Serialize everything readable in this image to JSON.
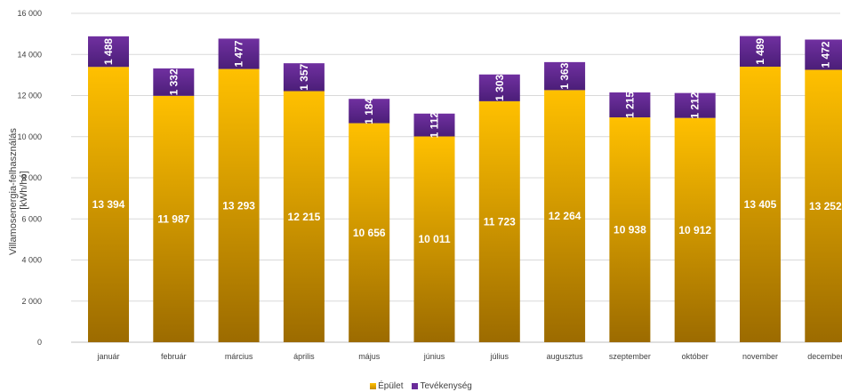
{
  "chart_data": {
    "type": "bar",
    "stacked": true,
    "categories": [
      "január",
      "február",
      "március",
      "április",
      "május",
      "június",
      "július",
      "augusztus",
      "szeptember",
      "október",
      "november",
      "december"
    ],
    "series": [
      {
        "name": "Épület",
        "values": [
          13394,
          11987,
          13293,
          12215,
          10656,
          10011,
          11723,
          12264,
          10938,
          10912,
          13405,
          13252
        ],
        "labels": [
          "13 394",
          "11 987",
          "13 293",
          "12 215",
          "10 656",
          "10 011",
          "11 723",
          "12 264",
          "10 938",
          "10 912",
          "13 405",
          "13 252"
        ],
        "color_top": "#FFC000",
        "color_bottom": "#9C6B00"
      },
      {
        "name": "Tevékenység",
        "values": [
          1488,
          1332,
          1477,
          1357,
          1184,
          1112,
          1303,
          1363,
          1215,
          1212,
          1489,
          1472
        ],
        "labels": [
          "1 488",
          "1 332",
          "1 477",
          "1 357",
          "1 184",
          "1 112",
          "1 303",
          "1 363",
          "1 215",
          "1 212",
          "1 489",
          "1 472"
        ],
        "color_top": "#7030A0",
        "color_bottom": "#4B1E78"
      }
    ],
    "ylabel_lines": [
      "Villamosenergia-felhasználás",
      "[kWh/hó]"
    ],
    "ylim": [
      0,
      16000
    ],
    "yticks": [
      0,
      2000,
      4000,
      6000,
      8000,
      10000,
      12000,
      14000,
      16000
    ],
    "ytick_labels": [
      "0",
      "2 000",
      "4 000",
      "6 000",
      "8 000",
      "10 000",
      "12 000",
      "14 000",
      "16 000"
    ],
    "grid": true,
    "legend_position": "bottom"
  }
}
